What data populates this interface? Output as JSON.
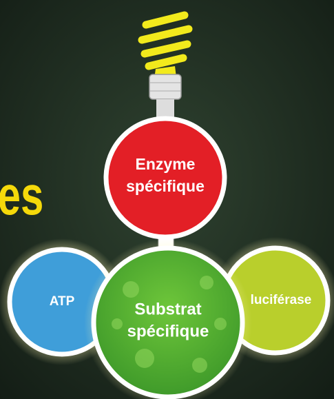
{
  "heading_fragment": "es",
  "nodes": [
    {
      "lines": [
        "Enzyme",
        "spécifique"
      ]
    },
    {
      "lines": [
        "ATP"
      ]
    },
    {
      "lines": [
        "Substrat",
        "spécifique"
      ]
    },
    {
      "lines": [
        "luciférase"
      ]
    }
  ]
}
